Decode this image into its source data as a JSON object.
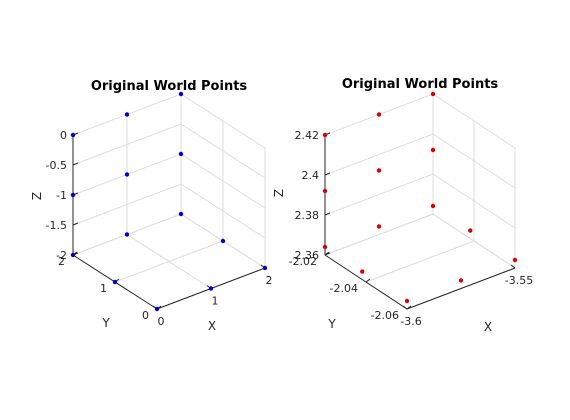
{
  "chart_data": [
    {
      "type": "scatter3d",
      "title": "Original World Points",
      "xlabel": "X",
      "ylabel": "Y",
      "zlabel": "Z",
      "xlim": [
        0,
        2
      ],
      "ylim": [
        0,
        2
      ],
      "zlim": [
        -2,
        0
      ],
      "xticks": [
        "0",
        "1",
        "2"
      ],
      "yticks": [
        "0",
        "1",
        "2"
      ],
      "zticks": [
        "-2",
        "-1.5",
        "-1",
        "-0.5",
        "0"
      ],
      "grid": true,
      "marker_color": "#0000cc",
      "points": [
        {
          "x": 0,
          "y": 2,
          "z": 0
        },
        {
          "x": 0,
          "y": 2,
          "z": -1
        },
        {
          "x": 0,
          "y": 2,
          "z": -2
        },
        {
          "x": 1,
          "y": 2,
          "z": 0
        },
        {
          "x": 1,
          "y": 2,
          "z": -1
        },
        {
          "x": 1,
          "y": 2,
          "z": -2
        },
        {
          "x": 2,
          "y": 2,
          "z": 0
        },
        {
          "x": 2,
          "y": 2,
          "z": -1
        },
        {
          "x": 2,
          "y": 2,
          "z": -2
        },
        {
          "x": 0,
          "y": 1,
          "z": -2
        },
        {
          "x": 0,
          "y": 0,
          "z": -2
        },
        {
          "x": 1,
          "y": 0,
          "z": -2
        },
        {
          "x": 2,
          "y": 0,
          "z": -2
        },
        {
          "x": 2,
          "y": 1,
          "z": -2
        }
      ]
    },
    {
      "type": "scatter3d",
      "title": "Original World Points",
      "xlabel": "X",
      "ylabel": "Y",
      "zlabel": "Z",
      "xlim": [
        -3.62,
        -3.55
      ],
      "ylim": [
        -2.07,
        -2.015
      ],
      "zlim": [
        2.355,
        2.43
      ],
      "xticks": [
        "-3.6",
        "-3.55"
      ],
      "yticks": [
        "-2.06",
        "-2.04",
        "-2.02"
      ],
      "zticks": [
        "2.36",
        "2.38",
        "2.4",
        "2.42"
      ],
      "grid": true,
      "marker_color": "#dd0000",
      "points": [
        {
          "x": -3.62,
          "y": -2.015,
          "z": 2.43
        },
        {
          "x": -3.62,
          "y": -2.015,
          "z": 2.395
        },
        {
          "x": -3.62,
          "y": -2.015,
          "z": 2.36
        },
        {
          "x": -3.585,
          "y": -2.015,
          "z": 2.43
        },
        {
          "x": -3.585,
          "y": -2.015,
          "z": 2.395
        },
        {
          "x": -3.585,
          "y": -2.015,
          "z": 2.36
        },
        {
          "x": -3.55,
          "y": -2.015,
          "z": 2.43
        },
        {
          "x": -3.55,
          "y": -2.015,
          "z": 2.395
        },
        {
          "x": -3.55,
          "y": -2.015,
          "z": 2.36
        },
        {
          "x": -3.62,
          "y": -2.04,
          "z": 2.36
        },
        {
          "x": -3.62,
          "y": -2.07,
          "z": 2.36
        },
        {
          "x": -3.585,
          "y": -2.07,
          "z": 2.36
        },
        {
          "x": -3.55,
          "y": -2.07,
          "z": 2.36
        },
        {
          "x": -3.55,
          "y": -2.04,
          "z": 2.36
        }
      ]
    }
  ]
}
